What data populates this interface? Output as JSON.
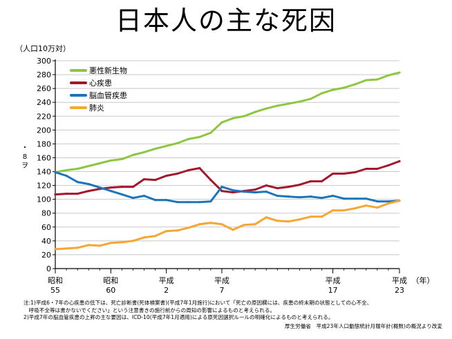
{
  "page": {
    "title": "日本人の主な死因",
    "side_text": "・ 8 ヲ",
    "notes": [
      "注:1)平成6・7年の心疾患の低下は、死亡診断書(死体検案書)(平成7年1月施行)において「死亡の原因欄には、疾患の終末期の状態としての心不全、",
      "　呼吸不全等は書かないでください」という注意書きの施行前からの周知の影響によるものと考えられる。",
      "2)平成7年の脳血管疾患の上昇の主な要因は、ICD-10(平成7年1月適用)による原死因選択ルールの明確化によるものと考えられる。"
    ],
    "source": "厚生労働省　平成23年人口動態統計月報年計(概数)の概況より改変"
  },
  "chart_data": {
    "type": "line",
    "title": "日本人の主な死因",
    "ylabel": "（人口10万対）",
    "xlabel": "（年）",
    "ylim": [
      0,
      300
    ],
    "yticks": [
      0,
      20,
      40,
      60,
      80,
      100,
      120,
      140,
      160,
      180,
      200,
      220,
      240,
      260,
      280,
      300
    ],
    "grid": true,
    "legend_position": "top-left",
    "x_ticks": [
      {
        "x": 1980,
        "era": "昭和",
        "num": "55"
      },
      {
        "x": 1985,
        "era": "昭和",
        "num": "60"
      },
      {
        "x": 1990,
        "era": "平成",
        "num": "2"
      },
      {
        "x": 1995,
        "era": "平成",
        "num": "7"
      },
      {
        "x": 2005,
        "era": "平成",
        "num": "17"
      },
      {
        "x": 2011,
        "era": "平成",
        "num": "23"
      }
    ],
    "xlim": [
      1980,
      2011
    ],
    "x": [
      1980,
      1981,
      1982,
      1983,
      1984,
      1985,
      1986,
      1987,
      1988,
      1989,
      1990,
      1991,
      1992,
      1993,
      1994,
      1995,
      1996,
      1997,
      1998,
      1999,
      2000,
      2001,
      2002,
      2003,
      2004,
      2005,
      2006,
      2007,
      2008,
      2009,
      2010,
      2011
    ],
    "series": [
      {
        "name": "悪性新生物",
        "color": "#8dc63f",
        "values": [
          139,
          142,
          144,
          148,
          152,
          156,
          158,
          164,
          168,
          173,
          177,
          181,
          187,
          190,
          196,
          211,
          217,
          220,
          226,
          231,
          235,
          238,
          241,
          245,
          253,
          258,
          261,
          266,
          272,
          273,
          279,
          283
        ]
      },
      {
        "name": "心疾患",
        "color": "#a3172c",
        "values": [
          107,
          108,
          108,
          112,
          115,
          117,
          118,
          118,
          129,
          128,
          134,
          137,
          142,
          145,
          128,
          112,
          110,
          112,
          114,
          120,
          116,
          118,
          121,
          126,
          126,
          137,
          137,
          139,
          144,
          144,
          149,
          155
        ]
      },
      {
        "name": "脳血管疾患",
        "color": "#1b75bb",
        "values": [
          139,
          134,
          125,
          122,
          117,
          112,
          107,
          102,
          105,
          99,
          99,
          96,
          96,
          96,
          97,
          118,
          113,
          111,
          110,
          111,
          105,
          104,
          103,
          104,
          102,
          105,
          101,
          101,
          101,
          97,
          97,
          98
        ]
      },
      {
        "name": "肺炎",
        "color": "#f7a533",
        "values": [
          28,
          29,
          30,
          34,
          33,
          37,
          38,
          40,
          45,
          47,
          54,
          55,
          59,
          64,
          66,
          64,
          56,
          63,
          64,
          74,
          69,
          68,
          71,
          75,
          75,
          84,
          84,
          87,
          91,
          88,
          94,
          98
        ]
      }
    ]
  }
}
